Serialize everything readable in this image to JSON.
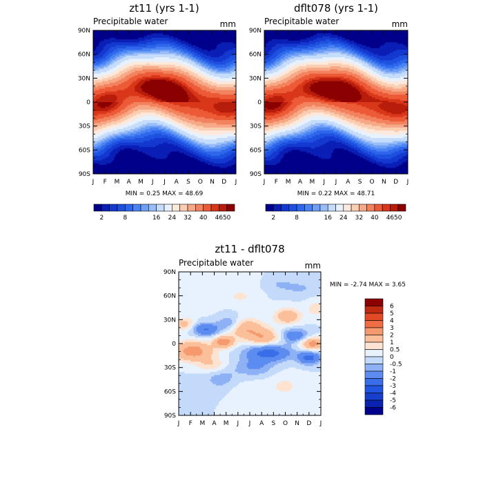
{
  "panels": [
    {
      "title": "zt11 (yrs 1-1)",
      "subtitle": "Precipitable water",
      "units": "mm",
      "stats": "MIN =    0.25  MAX =   48.69"
    },
    {
      "title": "dflt078 (yrs 1-1)",
      "subtitle": "Precipitable water",
      "units": "mm",
      "stats": "MIN =    0.22  MAX =   48.71"
    },
    {
      "title": "zt11 - dflt078",
      "subtitle": "Precipitable water",
      "units": "mm",
      "stats": "MIN =  -2.74  MAX =    3.65"
    }
  ],
  "chart_data": [
    {
      "type": "heatmap",
      "title": "zt11 (yrs 1-1)",
      "subtitle": "Precipitable water",
      "units": "mm",
      "x_ticks": [
        "J",
        "F",
        "M",
        "A",
        "M",
        "J",
        "J",
        "A",
        "S",
        "O",
        "N",
        "D",
        "J"
      ],
      "y_ticks": [
        "90N",
        "60N",
        "30N",
        "0",
        "30S",
        "60S",
        "90S"
      ],
      "x_range": [
        "Jan",
        "Jan"
      ],
      "y_range": [
        90,
        -90
      ],
      "min": 0.25,
      "max": 48.69,
      "colorbar_labels": [
        "2",
        "8",
        "16",
        "24",
        "32",
        "40",
        "46",
        "50"
      ],
      "colorbar_levels": [
        2,
        4,
        6,
        8,
        10,
        12,
        14,
        16,
        20,
        24,
        28,
        32,
        36,
        40,
        44,
        46,
        48,
        50
      ]
    },
    {
      "type": "heatmap",
      "title": "dflt078 (yrs 1-1)",
      "subtitle": "Precipitable water",
      "units": "mm",
      "x_ticks": [
        "J",
        "F",
        "M",
        "A",
        "M",
        "J",
        "J",
        "A",
        "S",
        "O",
        "N",
        "D",
        "J"
      ],
      "y_ticks": [
        "90N",
        "60N",
        "30N",
        "0",
        "30S",
        "60S",
        "90S"
      ],
      "x_range": [
        "Jan",
        "Jan"
      ],
      "y_range": [
        90,
        -90
      ],
      "min": 0.22,
      "max": 48.71,
      "colorbar_labels": [
        "2",
        "8",
        "16",
        "24",
        "32",
        "40",
        "46",
        "50"
      ],
      "colorbar_levels": [
        2,
        4,
        6,
        8,
        10,
        12,
        14,
        16,
        20,
        24,
        28,
        32,
        36,
        40,
        44,
        46,
        48,
        50
      ]
    },
    {
      "type": "heatmap",
      "title": "zt11 - dflt078",
      "subtitle": "Precipitable water",
      "units": "mm",
      "x_ticks": [
        "J",
        "F",
        "M",
        "A",
        "M",
        "J",
        "J",
        "A",
        "S",
        "O",
        "N",
        "D",
        "J"
      ],
      "y_ticks": [
        "90N",
        "60N",
        "30N",
        "0",
        "30S",
        "60S",
        "90S"
      ],
      "x_range": [
        "Jan",
        "Jan"
      ],
      "y_range": [
        90,
        -90
      ],
      "min": -2.74,
      "max": 3.65,
      "colorbar_labels": [
        "6",
        "5",
        "4",
        "3",
        "2",
        "1",
        "0.5",
        "0",
        "-0.5",
        "-1",
        "-2",
        "-3",
        "-4",
        "-5",
        "-6"
      ]
    }
  ],
  "colors": {
    "seq": [
      "#00008b",
      "#0a1fb5",
      "#1339d0",
      "#1e50e0",
      "#2e66ec",
      "#4a84f2",
      "#6e9ff5",
      "#98bdf8",
      "#c6dcfb",
      "#e8f2fe",
      "#fde9dc",
      "#fbcdb1",
      "#f7a987",
      "#f3835f",
      "#ec5a37",
      "#d9371a",
      "#b81c0a",
      "#8b0000"
    ],
    "diff": [
      "#00008b",
      "#0a22b0",
      "#163fcc",
      "#2256e0",
      "#3a6ee8",
      "#5c8cf0",
      "#8eb0f5",
      "#c4dafb",
      "#e8f2fe",
      "#fde3d1",
      "#fbbf9a",
      "#f59a6e",
      "#ee6d43",
      "#e04a25",
      "#c02a10",
      "#8b0000"
    ]
  }
}
